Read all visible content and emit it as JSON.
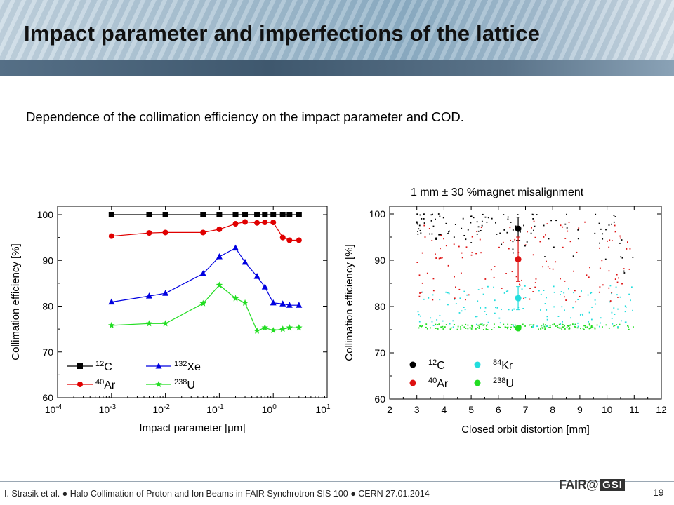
{
  "slide": {
    "title": "Impact parameter and imperfections of the lattice",
    "subtitle": "Dependence of the collimation efficiency on the impact parameter and COD.",
    "footer": "I. Strasik et al.  ●  Halo Collimation of Proton and Ion Beams in FAIR Synchrotron SIS 100  ●  CERN 27.01.2014",
    "page_number": "19",
    "logo_left": "FAIR",
    "logo_at": "@",
    "logo_right": "GSI"
  },
  "chart_data": [
    {
      "type": "line",
      "xscale": "log",
      "xlim": [
        0.0001,
        10
      ],
      "ylim": [
        60,
        100
      ],
      "xlabel": "Impact parameter [μm]",
      "ylabel": "Collimation efficiency [%]",
      "xticks": [
        {
          "v": 0.0001,
          "base": "10",
          "exp": "-4"
        },
        {
          "v": 0.001,
          "base": "10",
          "exp": "-3"
        },
        {
          "v": 0.01,
          "base": "10",
          "exp": "-2"
        },
        {
          "v": 0.1,
          "base": "10",
          "exp": "-1"
        },
        {
          "v": 1,
          "base": "10",
          "exp": "0"
        },
        {
          "v": 10,
          "base": "10",
          "exp": "1"
        }
      ],
      "yticks": [
        60,
        70,
        80,
        90,
        100
      ],
      "grid": false,
      "legend_position": "bottom-left",
      "series": [
        {
          "name": "12C",
          "mass": "12",
          "element": "C",
          "color": "#000000",
          "marker": "square",
          "x": [
            0.001,
            0.005,
            0.01,
            0.05,
            0.1,
            0.2,
            0.3,
            0.5,
            0.7,
            1,
            1.5,
            2,
            3
          ],
          "y": [
            100,
            100,
            100,
            100,
            100,
            100,
            100,
            100,
            100,
            100,
            100,
            100,
            100
          ]
        },
        {
          "name": "40Ar",
          "mass": "40",
          "element": "Ar",
          "color": "#e00000",
          "marker": "circle",
          "x": [
            0.001,
            0.005,
            0.01,
            0.05,
            0.1,
            0.2,
            0.3,
            0.5,
            0.7,
            1,
            1.5,
            2,
            3
          ],
          "y": [
            95.3,
            96.0,
            96.1,
            96.1,
            96.8,
            98.0,
            98.4,
            98.2,
            98.3,
            98.3,
            95.0,
            94.4,
            94.4
          ]
        },
        {
          "name": "132Xe",
          "mass": "132",
          "element": "Xe",
          "color": "#0000e0",
          "marker": "triangle",
          "x": [
            0.001,
            0.005,
            0.01,
            0.05,
            0.1,
            0.2,
            0.3,
            0.5,
            0.7,
            1,
            1.5,
            2,
            3
          ],
          "y": [
            80.9,
            82.2,
            82.8,
            87.1,
            90.8,
            92.7,
            89.6,
            86.5,
            84.2,
            80.7,
            80.5,
            80.2,
            80.2
          ]
        },
        {
          "name": "238U",
          "mass": "238",
          "element": "U",
          "color": "#22dd22",
          "marker": "star",
          "x": [
            0.001,
            0.005,
            0.01,
            0.05,
            0.1,
            0.2,
            0.3,
            0.5,
            0.7,
            1,
            1.5,
            2,
            3
          ],
          "y": [
            75.8,
            76.2,
            76.2,
            80.6,
            84.6,
            81.7,
            80.7,
            74.6,
            75.3,
            74.7,
            75.0,
            75.3,
            75.3
          ]
        }
      ]
    },
    {
      "type": "scatter",
      "title": "1 mm ± 30 %magnet misalignment",
      "xlim": [
        2,
        12
      ],
      "ylim": [
        60,
        100
      ],
      "xlabel": "Closed orbit distortion [mm]",
      "ylabel": "Collimation efficiency [%]",
      "xticks": [
        2,
        3,
        4,
        5,
        6,
        7,
        8,
        9,
        10,
        11,
        12
      ],
      "yticks": [
        60,
        70,
        80,
        90,
        100
      ],
      "grid": false,
      "legend_position": "bottom-left",
      "series": [
        {
          "name": "12C",
          "mass": "12",
          "element": "C",
          "color": "#000000",
          "mean": {
            "x": 6.73,
            "y": 96.8,
            "err": 2.5
          },
          "scatter": {
            "xmin": 3.0,
            "xmax": 11.0,
            "ymin": 86.0,
            "ymax": 100,
            "count": 120,
            "bias": 0.55
          }
        },
        {
          "name": "40Ar",
          "mass": "40",
          "element": "Ar",
          "color": "#dd1111",
          "mean": {
            "x": 6.73,
            "y": 90.2,
            "err": 4.8
          },
          "scatter": {
            "xmin": 3.0,
            "xmax": 11.0,
            "ymin": 81.0,
            "ymax": 99.0,
            "count": 140,
            "bias": 0.0
          }
        },
        {
          "name": "84Kr",
          "mass": "84",
          "element": "Kr",
          "color": "#22dddd",
          "mean": {
            "x": 6.73,
            "y": 81.8,
            "err": 2.5
          },
          "scatter": {
            "xmin": 3.0,
            "xmax": 11.0,
            "ymin": 75.5,
            "ymax": 84.5,
            "count": 140,
            "bias": 0.0
          }
        },
        {
          "name": "238U",
          "mass": "238",
          "element": "U",
          "color": "#22dd22",
          "mean": {
            "x": 6.73,
            "y": 75.3,
            "err": 0.3
          },
          "scatter": {
            "xmin": 3.0,
            "xmax": 11.0,
            "ymin": 75.0,
            "ymax": 76.2,
            "count": 160,
            "bias": 0.0
          }
        }
      ]
    }
  ]
}
